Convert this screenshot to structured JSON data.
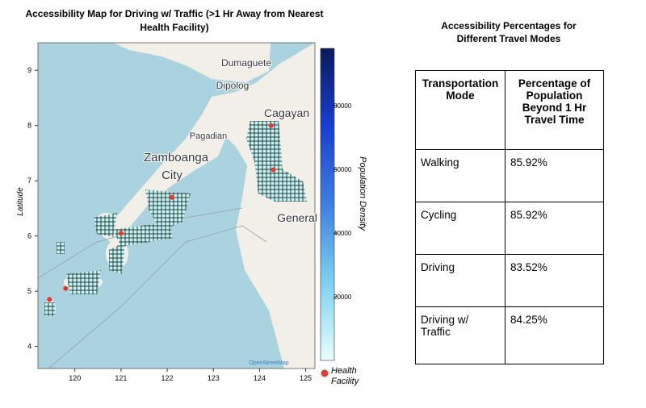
{
  "map": {
    "title": "Accessibility Map for Driving w/ Traffic (>1 Hr Away from Nearest Health Facility)",
    "ylabel": "Latitude",
    "xlim": [
      119.2,
      125.2
    ],
    "ylim": [
      3.6,
      9.5
    ],
    "xticks": [
      120,
      121,
      122,
      123,
      124,
      125
    ],
    "yticks": [
      4,
      5,
      6,
      7,
      8,
      9
    ],
    "colorbar": {
      "label": "Population Density",
      "lim": [
        0,
        98000
      ],
      "ticks": [
        20000,
        40000,
        60000,
        80000
      ],
      "colors": [
        "#e8ffff",
        "#7fd0f0",
        "#3f7fe0",
        "#1a3fcf",
        "#0a1a5c"
      ]
    },
    "legend": "Health Facility",
    "facility_color": "#e0392e",
    "attribution": "OpenStreetMap",
    "place_labels": [
      "Dumaguete",
      "Dipolog",
      "Pagadian",
      "Zamboanga",
      "City",
      "Cagayan",
      "General"
    ],
    "health_facilities": {
      "lon": [
        119.45,
        119.8,
        121.0,
        122.1,
        124.25,
        124.3
      ],
      "lat": [
        4.85,
        5.05,
        6.05,
        6.7,
        8.0,
        7.2
      ]
    }
  },
  "table": {
    "title": "Accessibility Percentages for Different Travel Modes",
    "header": [
      "Transportation Mode",
      "Percentage of Population Beyond 1 Hr Travel Time"
    ],
    "rows": [
      [
        "Walking",
        "85.92%"
      ],
      [
        "Cycling",
        "85.92%"
      ],
      [
        "Driving",
        "83.52%"
      ],
      [
        "Driving w/ Traffic",
        "84.25%"
      ]
    ]
  }
}
